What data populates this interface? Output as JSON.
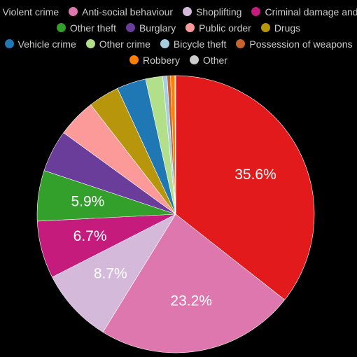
{
  "chart_data": {
    "type": "pie",
    "title": "",
    "legend_position": "top",
    "slices": [
      {
        "name": "Violent crime",
        "value": 35.6,
        "color": "#e31a1c",
        "label": "35.6%"
      },
      {
        "name": "Anti-social behaviour",
        "value": 23.2,
        "color": "#de77ae",
        "label": "23.2%"
      },
      {
        "name": "Shoplifting",
        "value": 8.7,
        "color": "#d4b9da",
        "label": "8.7%"
      },
      {
        "name": "Criminal damage and…",
        "value": 6.7,
        "color": "#c51b7d",
        "label": "6.7%"
      },
      {
        "name": "Other theft",
        "value": 5.9,
        "color": "#33a02c",
        "label": "5.9%"
      },
      {
        "name": "Burglary",
        "value": 4.9,
        "color": "#6a3d9a",
        "label": ""
      },
      {
        "name": "Public order",
        "value": 4.5,
        "color": "#fb9a99",
        "label": ""
      },
      {
        "name": "Drugs",
        "value": 3.6,
        "color": "#b8960c",
        "label": ""
      },
      {
        "name": "Vehicle crime",
        "value": 3.4,
        "color": "#1f78b4",
        "label": ""
      },
      {
        "name": "Other crime",
        "value": 2.0,
        "color": "#b2df8a",
        "label": ""
      },
      {
        "name": "Bicycle theft",
        "value": 0.5,
        "color": "#a6cee3",
        "label": ""
      },
      {
        "name": "Possession of weapons",
        "value": 0.4,
        "color": "#c8622e",
        "label": ""
      },
      {
        "name": "Robbery",
        "value": 0.5,
        "color": "#ff7f00",
        "label": ""
      },
      {
        "name": "Other",
        "value": 0.1,
        "color": "#cccccc",
        "label": ""
      }
    ]
  }
}
